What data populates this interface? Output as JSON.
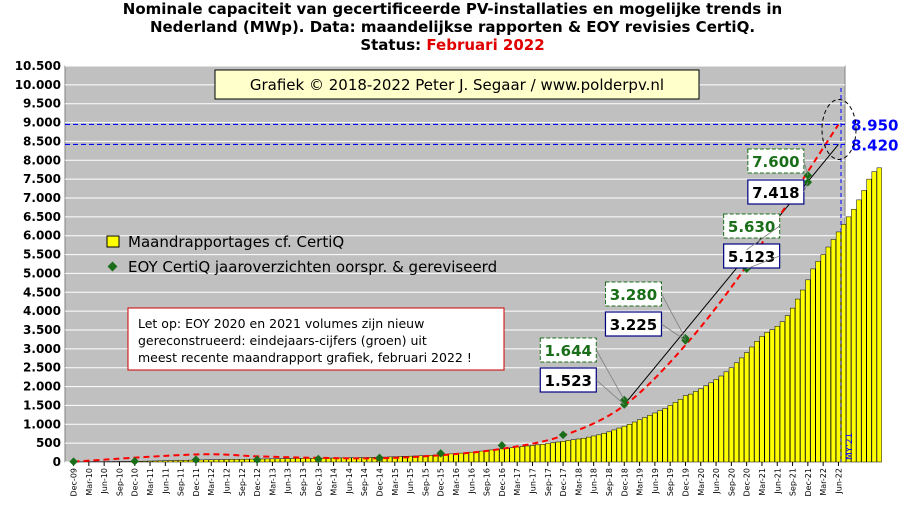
{
  "title": {
    "line1": "Nominale  capaciteit  van gecertificeerde  PV-installaties  en mogelijke  trends in",
    "line2": "Nederland (MWp). Data: maandelijkse  rapporten & EOY revisies  CertiQ.",
    "status_label": "Status:",
    "status_date": "Februari 2022"
  },
  "copyright": "Grafiek © 2018-2022 Peter J. Segaar / www.polderpv.nl",
  "legend": {
    "monthly": "Maandrapportages cf. CertiQ",
    "eoy": "EOY CertiQ jaaroverzichten oorspr. & gereviseerd"
  },
  "note": {
    "line1": "Let op: EOY 2020 en 2021 volumes zijn nieuw",
    "line2": "gereconstrueerd: eindejaars-cijfers (groen) uit",
    "line3": "meest recente maandrapport grafiek, februari 2022 !"
  },
  "ref_lines": [
    {
      "value": 8950,
      "label": "8.950"
    },
    {
      "value": 8420,
      "label": "8.420"
    }
  ],
  "my21_label": "MY'21",
  "colors": {
    "plot_bg": "#c0c0c0",
    "bar_fill": "#ffff00",
    "bar_stroke": "#000000",
    "eoy_marker": "#1a6e1a",
    "eoy_label": "#1a6e1a",
    "red_trend": "#ff0000",
    "ref_line": "#0000ff",
    "note_border": "#cc0000",
    "copyright_bg": "#ffffcc"
  },
  "chart_data": {
    "type": "bar",
    "start_month": "Dec-09",
    "ylim": [
      0,
      10500
    ],
    "yticks": [
      0,
      500,
      1000,
      1500,
      2000,
      2500,
      3000,
      3500,
      4000,
      4500,
      5000,
      5500,
      6000,
      6500,
      7000,
      7500,
      8000,
      8500,
      9000,
      9500,
      10000,
      10500
    ],
    "ytick_labels": [
      "0",
      "500",
      "1.000",
      "1.500",
      "2.000",
      "2.500",
      "3.000",
      "3.500",
      "4.000",
      "4.500",
      "5.000",
      "5.500",
      "6.000",
      "6.500",
      "7.000",
      "7.500",
      "8.000",
      "8.500",
      "9.000",
      "9.500",
      "10.000",
      "10.500"
    ],
    "x_tick_labels": [
      "Dec-09",
      "Mar-10",
      "Jun-10",
      "Sep-10",
      "Dec-10",
      "Mar-11",
      "Jun-11",
      "Sep-11",
      "Dec-11",
      "Mar-12",
      "Jun-12",
      "Sep-12",
      "Dec-12",
      "Mar-13",
      "Jun-13",
      "Sep-13",
      "Dec-13",
      "Mar-14",
      "Jun-14",
      "Sep-14",
      "Dec-14",
      "Mar-15",
      "Jun-15",
      "Sep-15",
      "Dec-15",
      "Mar-16",
      "Jun-16",
      "Sep-16",
      "Dec-16",
      "Mar-17",
      "Jun-17",
      "Sep-17",
      "Dec-17",
      "Mar-18",
      "Jun-18",
      "Sep-18",
      "Dec-18",
      "Mar-19",
      "Jun-19",
      "Sep-19",
      "Dec-19",
      "Mar-20",
      "Jun-20",
      "Sep-20",
      "Dec-20",
      "Mar-21",
      "Jun-21",
      "Sep-21",
      "Dec-21",
      "Mar-22",
      "Jun-22"
    ],
    "monthly_series": {
      "name": "Maandrapportages cf. CertiQ",
      "start_month": "Jan-10",
      "values": [
        5,
        6,
        7,
        8,
        8,
        9,
        10,
        11,
        12,
        13,
        14,
        15,
        20,
        22,
        25,
        28,
        31,
        34,
        37,
        40,
        43,
        46,
        49,
        52,
        55,
        58,
        60,
        62,
        64,
        66,
        68,
        70,
        72,
        74,
        76,
        78,
        80,
        82,
        84,
        86,
        88,
        90,
        92,
        94,
        95,
        96,
        98,
        100,
        102,
        104,
        106,
        108,
        110,
        112,
        114,
        116,
        118,
        120,
        122,
        125,
        130,
        135,
        140,
        145,
        150,
        155,
        160,
        165,
        170,
        175,
        185,
        195,
        205,
        215,
        225,
        235,
        245,
        260,
        275,
        290,
        305,
        320,
        335,
        350,
        365,
        380,
        395,
        410,
        425,
        440,
        455,
        470,
        490,
        510,
        530,
        550,
        570,
        590,
        610,
        630,
        660,
        690,
        720,
        760,
        800,
        850,
        900,
        950,
        1000,
        1060,
        1120,
        1180,
        1240,
        1300,
        1360,
        1420,
        1500,
        1580,
        1660,
        1760,
        1800,
        1870,
        1940,
        2020,
        2100,
        2190,
        2280,
        2390,
        2500,
        2630,
        2760,
        2900,
        3050,
        3200,
        3330,
        3440,
        3510,
        3600,
        3720,
        3880,
        4080,
        4320,
        4560,
        4830,
        5120,
        5320,
        5500,
        5700,
        5900,
        6100,
        6300,
        6500,
        6700,
        6950,
        7200,
        7500,
        7700,
        7800
      ]
    },
    "eoy_series": {
      "name": "EOY CertiQ jaaroverzichten oorspr. & gereviseerd",
      "points": [
        {
          "x": "Dec-09",
          "y": 10
        },
        {
          "x": "Dec-10",
          "y": 20
        },
        {
          "x": "Dec-11",
          "y": 60
        },
        {
          "x": "Dec-12",
          "y": 60
        },
        {
          "x": "Dec-13",
          "y": 80
        },
        {
          "x": "Dec-14",
          "y": 110
        },
        {
          "x": "Dec-15",
          "y": 230
        },
        {
          "x": "Dec-16",
          "y": 440
        },
        {
          "x": "Dec-17",
          "y": 720
        },
        {
          "x": "Dec-18",
          "y": 1523,
          "label": "1.523"
        },
        {
          "x": "Dec-18",
          "y": 1644,
          "label": "1.644"
        },
        {
          "x": "Dec-19",
          "y": 3225,
          "label": "3.225"
        },
        {
          "x": "Dec-19",
          "y": 3280,
          "label": "3.280"
        },
        {
          "x": "Dec-20",
          "y": 5123,
          "label": "5.123"
        },
        {
          "x": "Dec-20",
          "y": 5630,
          "label": "5.630"
        },
        {
          "x": "Dec-21",
          "y": 7418,
          "label": "7.418"
        },
        {
          "x": "Dec-21",
          "y": 7600,
          "label": "7.600"
        }
      ]
    },
    "trend_black": [
      {
        "x": "Dec-18",
        "y": 1523
      },
      {
        "x": "Jun-22",
        "y": 8420
      }
    ],
    "trend_red": [
      {
        "x": "Dec-09",
        "y": 10
      },
      {
        "x": "Dec-11",
        "y": 200
      },
      {
        "x": "Dec-12",
        "y": 150
      },
      {
        "x": "Dec-13",
        "y": 110
      },
      {
        "x": "Dec-14",
        "y": 100
      },
      {
        "x": "Dec-15",
        "y": 180
      },
      {
        "x": "Dec-16",
        "y": 350
      },
      {
        "x": "Dec-17",
        "y": 700
      },
      {
        "x": "Dec-18",
        "y": 1500
      },
      {
        "x": "Dec-19",
        "y": 3100
      },
      {
        "x": "Dec-20",
        "y": 5200
      },
      {
        "x": "Dec-21",
        "y": 7700
      },
      {
        "x": "Jun-22",
        "y": 8950
      }
    ],
    "eoy_boxes": [
      {
        "x": "Dec-18",
        "green": "1.644",
        "black": "1.523"
      },
      {
        "x": "Dec-19",
        "green": "3.280",
        "black": "3.225"
      },
      {
        "x": "Dec-20",
        "green": "5.630",
        "black": "5.123"
      },
      {
        "x": "Dec-21",
        "green": "7.600",
        "black": "7.418"
      }
    ]
  }
}
